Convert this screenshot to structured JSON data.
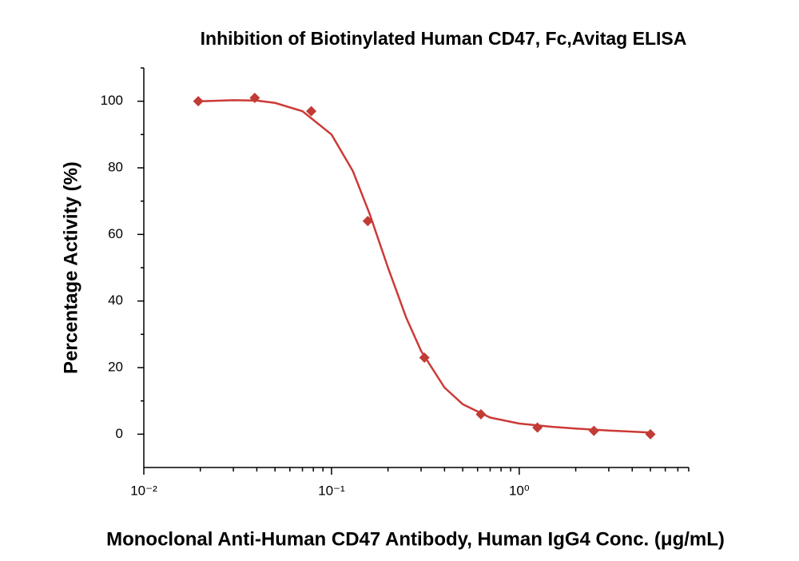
{
  "chart_data": {
    "type": "scatter",
    "title": "Inhibition of Biotinylated Human CD47, Fc,Avitag ELISA",
    "x_label": "Monoclonal Anti-Human CD47 Antibody, Human IgG4 Conc. (μg/mL)",
    "y_label": "Percentage Activity (%)",
    "log_x": true,
    "xlim": [
      0.01,
      8
    ],
    "ylim": [
      -10,
      110
    ],
    "xticks": [
      {
        "value": 0.01,
        "label": "10⁻²"
      },
      {
        "value": 0.1,
        "label": "10⁻¹"
      },
      {
        "value": 1,
        "label": "10⁰"
      }
    ],
    "xminor_ticks": [
      0.02,
      0.03,
      0.04,
      0.05,
      0.06,
      0.07,
      0.08,
      0.09,
      0.2,
      0.3,
      0.4,
      0.5,
      0.6,
      0.7,
      0.8,
      0.9,
      2,
      3,
      4,
      5,
      6,
      7,
      8
    ],
    "yticks": [
      0,
      20,
      40,
      60,
      80,
      100
    ],
    "yminor_ticks": [
      10,
      30,
      50,
      70,
      90,
      110
    ],
    "series": [
      {
        "type": "scatter",
        "color": "#c23b35",
        "x": [
          0.0195,
          0.039,
          0.078,
          0.156,
          0.3125,
          0.625,
          1.25,
          2.5,
          5
        ],
        "values": [
          100,
          101,
          97,
          64,
          23,
          6,
          2,
          1,
          0
        ]
      },
      {
        "type": "line",
        "color": "#cc3a36",
        "x": [
          0.02,
          0.03,
          0.04,
          0.05,
          0.07,
          0.1,
          0.13,
          0.16,
          0.2,
          0.25,
          0.3,
          0.4,
          0.5,
          0.7,
          1,
          1.5,
          2,
          3,
          5
        ],
        "values": [
          100,
          100.3,
          100.2,
          99.5,
          97,
          90,
          79,
          66,
          50,
          35,
          25,
          14,
          9,
          5,
          3.2,
          2.2,
          1.7,
          1.1,
          0.5
        ]
      }
    ]
  }
}
